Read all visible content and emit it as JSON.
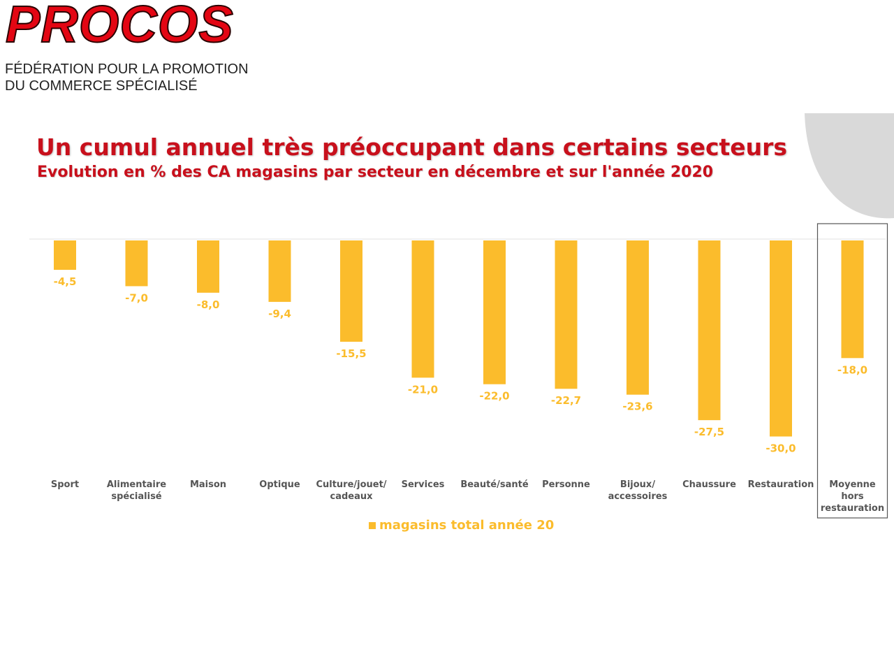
{
  "header": {
    "logo_text": "PROCOS",
    "tagline_line1": "FÉDÉRATION POUR LA PROMOTION",
    "tagline_line2": "DU COMMERCE SPÉCIALISÉ"
  },
  "colors": {
    "bar": "#fbbc2c",
    "title": "#c8101c",
    "logo": "#e30613",
    "highlight_border": "#555555",
    "corner_shape": "#d9d9d9"
  },
  "chart_data": {
    "type": "bar",
    "title": "Un cumul annuel très préoccupant dans certains secteurs",
    "subtitle": "Evolution en % des CA magasins par secteur en décembre et sur l'année 2020",
    "categories": [
      [
        "Sport"
      ],
      [
        "Alimentaire",
        "spécialisé"
      ],
      [
        "Maison"
      ],
      [
        "Optique"
      ],
      [
        "Culture/jouet/",
        "cadeaux"
      ],
      [
        "Services"
      ],
      [
        "Beauté/santé"
      ],
      [
        "Personne"
      ],
      [
        "Bijoux/",
        "accessoires"
      ],
      [
        "Chaussure"
      ],
      [
        "Restauration"
      ],
      [
        "Moyenne",
        "hors",
        "restauration"
      ]
    ],
    "series": [
      {
        "name": "magasins total année 20",
        "values": [
          -4.5,
          -7.0,
          -8.0,
          -9.4,
          -15.5,
          -21.0,
          -22.0,
          -22.7,
          -23.6,
          -27.5,
          -30.0,
          -18.0
        ],
        "labels": [
          "-4,5",
          "-7,0",
          "-8,0",
          "-9,4",
          "-15,5",
          "-21,0",
          "-22,0",
          "-22,7",
          "-23,6",
          "-27,5",
          "-30,0",
          "-18,0"
        ]
      }
    ],
    "ylim": [
      -32,
      0
    ],
    "highlighted_category_index": 11,
    "grid": false,
    "legend_position": "bottom-center"
  }
}
